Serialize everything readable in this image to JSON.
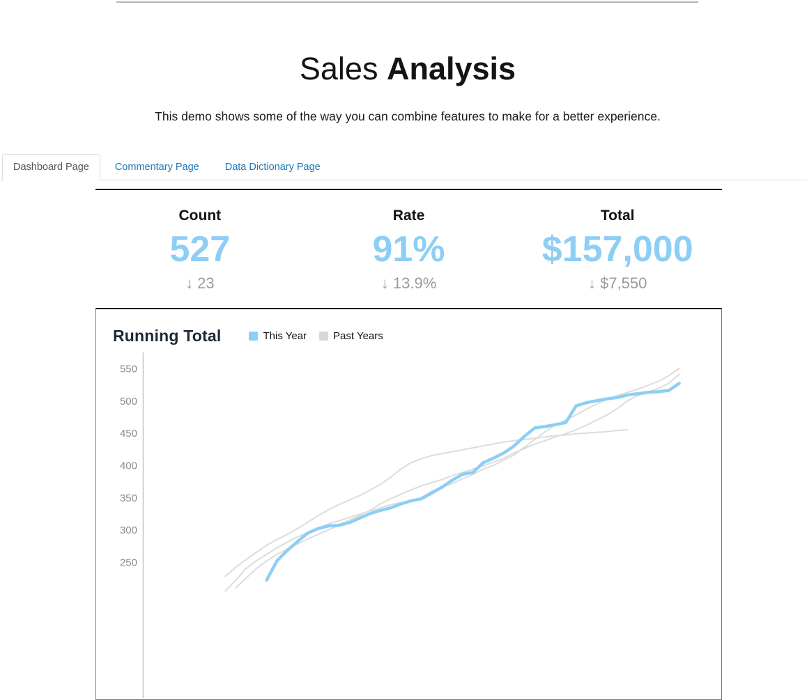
{
  "header": {
    "title_regular": "Sales",
    "title_bold": "Analysis",
    "subtitle": "This demo shows some of the way you can combine features to make for a better experience."
  },
  "tabs": {
    "items": [
      {
        "label": "Dashboard Page",
        "active": true
      },
      {
        "label": "Commentary Page",
        "active": false
      },
      {
        "label": "Data Dictionary Page",
        "active": false
      }
    ]
  },
  "kpis": [
    {
      "label": "Count",
      "value": "527",
      "delta_arrow": "↓",
      "delta": "23"
    },
    {
      "label": "Rate",
      "value": "91%",
      "delta_arrow": "↓",
      "delta": "13.9%"
    },
    {
      "label": "Total",
      "value": "$157,000",
      "delta_arrow": "↓",
      "delta": "$7,550"
    }
  ],
  "colors": {
    "accent_blue": "#8DCEF4",
    "delta_gray": "#9b9b9b",
    "past_years_gray": "#DCDCDC",
    "legend_gray_swatch": "#D8D8D8",
    "tab_link_blue": "#2077b4",
    "axis_line_gray": "#c6c6c6",
    "tick_text_gray": "#8c8c8c"
  },
  "chart_data": {
    "type": "line",
    "title": "Running Total",
    "legend": [
      {
        "name": "This Year",
        "color": "#8DCEF4"
      },
      {
        "name": "Past Years",
        "color": "#D8D8D8"
      }
    ],
    "xlabel": "",
    "ylabel": "",
    "x_unit": "week",
    "y_ticks": [
      550,
      500,
      450,
      400,
      350,
      300,
      250
    ],
    "y_visible_range": [
      243,
      560
    ],
    "grid": false,
    "legend_position": "top",
    "series": [
      {
        "name": "Past Year 1",
        "color": "#DCDCDC",
        "width": 2,
        "points": [
          [
            8,
            205
          ],
          [
            9,
            222
          ],
          [
            10,
            240
          ],
          [
            11,
            252
          ],
          [
            12,
            262
          ],
          [
            13,
            272
          ],
          [
            14,
            281
          ],
          [
            15,
            289
          ],
          [
            16,
            296
          ],
          [
            17,
            303
          ],
          [
            18,
            309
          ],
          [
            19,
            314
          ],
          [
            20,
            319
          ],
          [
            21,
            324
          ],
          [
            22,
            329
          ],
          [
            23,
            334
          ],
          [
            24,
            339
          ],
          [
            25,
            342
          ],
          [
            26,
            344
          ],
          [
            27,
            350
          ],
          [
            28,
            360
          ],
          [
            29,
            366
          ],
          [
            30,
            372
          ],
          [
            31,
            379
          ],
          [
            32,
            386
          ],
          [
            33,
            394
          ],
          [
            34,
            400
          ],
          [
            35,
            408
          ],
          [
            36,
            416
          ],
          [
            37,
            428
          ],
          [
            38,
            440
          ],
          [
            39,
            452
          ],
          [
            40,
            462
          ],
          [
            41,
            470
          ],
          [
            42,
            478
          ],
          [
            43,
            487
          ],
          [
            44,
            495
          ],
          [
            45,
            502
          ],
          [
            46,
            508
          ],
          [
            47,
            513
          ],
          [
            48,
            518
          ],
          [
            49,
            524
          ],
          [
            50,
            530
          ],
          [
            51,
            539
          ],
          [
            52,
            550
          ]
        ]
      },
      {
        "name": "Past Year 2",
        "color": "#DCDCDC",
        "width": 2,
        "points": [
          [
            8,
            228
          ],
          [
            9,
            242
          ],
          [
            10,
            254
          ],
          [
            11,
            265
          ],
          [
            12,
            276
          ],
          [
            13,
            285
          ],
          [
            14,
            293
          ],
          [
            15,
            302
          ],
          [
            16,
            312
          ],
          [
            17,
            322
          ],
          [
            18,
            331
          ],
          [
            19,
            339
          ],
          [
            20,
            346
          ],
          [
            21,
            353
          ],
          [
            22,
            361
          ],
          [
            23,
            370
          ],
          [
            24,
            381
          ],
          [
            25,
            394
          ],
          [
            26,
            404
          ],
          [
            27,
            410
          ],
          [
            28,
            415
          ],
          [
            29,
            418
          ],
          [
            30,
            421
          ],
          [
            31,
            424
          ],
          [
            32,
            427
          ],
          [
            33,
            430
          ],
          [
            34,
            433
          ],
          [
            35,
            436
          ],
          [
            36,
            438
          ],
          [
            37,
            440
          ],
          [
            38,
            442
          ],
          [
            39,
            444
          ],
          [
            40,
            446
          ],
          [
            41,
            447
          ],
          [
            42,
            449
          ],
          [
            43,
            450
          ],
          [
            44,
            451
          ],
          [
            45,
            452
          ],
          [
            46,
            454
          ],
          [
            47,
            455
          ]
        ]
      },
      {
        "name": "Past Year 3",
        "color": "#DCDCDC",
        "width": 2,
        "points": [
          [
            9,
            210
          ],
          [
            10,
            225
          ],
          [
            11,
            240
          ],
          [
            12,
            252
          ],
          [
            13,
            262
          ],
          [
            14,
            270
          ],
          [
            15,
            278
          ],
          [
            16,
            286
          ],
          [
            17,
            293
          ],
          [
            18,
            300
          ],
          [
            19,
            307
          ],
          [
            20,
            315
          ],
          [
            21,
            322
          ],
          [
            22,
            330
          ],
          [
            23,
            340
          ],
          [
            24,
            348
          ],
          [
            25,
            355
          ],
          [
            26,
            362
          ],
          [
            27,
            368
          ],
          [
            28,
            373
          ],
          [
            29,
            378
          ],
          [
            30,
            384
          ],
          [
            31,
            389
          ],
          [
            32,
            394
          ],
          [
            33,
            399
          ],
          [
            34,
            405
          ],
          [
            35,
            411
          ],
          [
            36,
            419
          ],
          [
            37,
            426
          ],
          [
            38,
            433
          ],
          [
            39,
            438
          ],
          [
            40,
            444
          ],
          [
            41,
            449
          ],
          [
            42,
            455
          ],
          [
            43,
            462
          ],
          [
            44,
            470
          ],
          [
            45,
            478
          ],
          [
            46,
            488
          ],
          [
            47,
            500
          ],
          [
            48,
            508
          ],
          [
            49,
            514
          ],
          [
            50,
            519
          ],
          [
            51,
            527
          ],
          [
            52,
            541
          ]
        ]
      },
      {
        "name": "This Year",
        "color": "#8DCEF4",
        "width": 4.5,
        "points": [
          [
            12,
            222
          ],
          [
            13,
            252
          ],
          [
            14,
            268
          ],
          [
            15,
            282
          ],
          [
            16,
            295
          ],
          [
            17,
            302
          ],
          [
            18,
            306
          ],
          [
            19,
            307
          ],
          [
            20,
            311
          ],
          [
            21,
            318
          ],
          [
            22,
            325
          ],
          [
            23,
            330
          ],
          [
            24,
            334
          ],
          [
            25,
            340
          ],
          [
            26,
            345
          ],
          [
            27,
            348
          ],
          [
            28,
            357
          ],
          [
            29,
            366
          ],
          [
            30,
            377
          ],
          [
            31,
            386
          ],
          [
            32,
            389
          ],
          [
            33,
            404
          ],
          [
            34,
            411
          ],
          [
            35,
            419
          ],
          [
            36,
            430
          ],
          [
            37,
            445
          ],
          [
            38,
            458
          ],
          [
            39,
            460
          ],
          [
            40,
            463
          ],
          [
            41,
            466
          ],
          [
            42,
            492
          ],
          [
            43,
            497
          ],
          [
            44,
            500
          ],
          [
            45,
            503
          ],
          [
            46,
            505
          ],
          [
            47,
            509
          ],
          [
            48,
            511
          ],
          [
            49,
            513
          ],
          [
            50,
            514
          ],
          [
            51,
            516
          ],
          [
            52,
            527
          ]
        ]
      }
    ]
  }
}
